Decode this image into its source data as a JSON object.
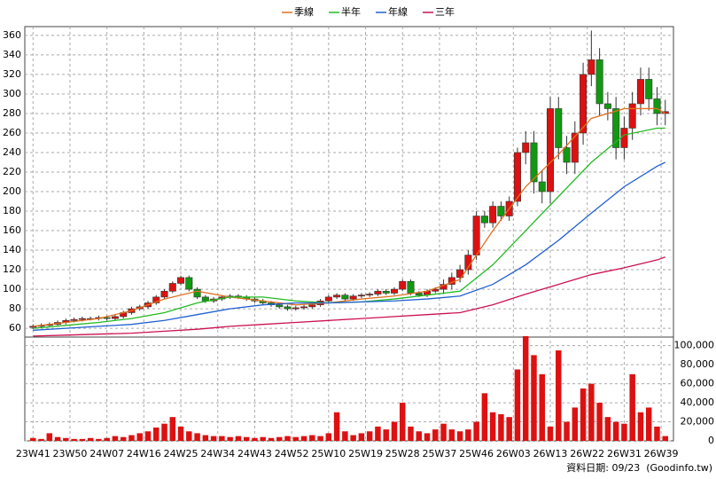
{
  "chart_data": {
    "type": "candlestick",
    "lines": [
      {
        "name": "季線",
        "color": "#e07020",
        "x": [
          0,
          8,
          16,
          24,
          32,
          40,
          48,
          56,
          64,
          72,
          80,
          88,
          96,
          104,
          112,
          120,
          128,
          136,
          144,
          152,
          154
        ],
        "values": [
          62,
          66,
          70,
          78,
          90,
          98,
          92,
          88,
          84,
          86,
          90,
          93,
          98,
          110,
          160,
          205,
          238,
          275,
          285,
          285,
          280
        ]
      },
      {
        "name": "半年",
        "color": "#22bb22",
        "x": [
          0,
          8,
          16,
          24,
          32,
          40,
          48,
          56,
          64,
          72,
          80,
          88,
          96,
          104,
          112,
          120,
          128,
          136,
          144,
          152,
          154
        ],
        "values": [
          60,
          63,
          66,
          70,
          76,
          86,
          92,
          92,
          88,
          86,
          87,
          90,
          94,
          98,
          125,
          160,
          195,
          230,
          258,
          265,
          265
        ]
      },
      {
        "name": "年線",
        "color": "#2060d0",
        "x": [
          0,
          8,
          16,
          24,
          32,
          40,
          48,
          56,
          64,
          72,
          80,
          88,
          96,
          104,
          112,
          120,
          128,
          136,
          144,
          152,
          154
        ],
        "values": [
          58,
          60,
          62,
          64,
          68,
          74,
          80,
          84,
          86,
          86,
          87,
          88,
          90,
          93,
          105,
          125,
          150,
          178,
          205,
          226,
          230
        ]
      },
      {
        "name": "三年",
        "color": "#cc1050",
        "x": [
          0,
          8,
          16,
          24,
          32,
          40,
          48,
          56,
          64,
          72,
          80,
          88,
          96,
          104,
          112,
          120,
          128,
          136,
          144,
          152,
          154
        ],
        "values": [
          52,
          53,
          54,
          55,
          57,
          59,
          62,
          64,
          66,
          68,
          70,
          72,
          74,
          76,
          84,
          95,
          105,
          115,
          122,
          130,
          133
        ]
      }
    ],
    "x": [
      0,
      2,
      4,
      6,
      8,
      10,
      12,
      14,
      16,
      18,
      20,
      22,
      24,
      26,
      28,
      30,
      32,
      34,
      36,
      38,
      40,
      42,
      44,
      46,
      48,
      50,
      52,
      54,
      56,
      58,
      60,
      62,
      64,
      66,
      68,
      70,
      72,
      74,
      76,
      78,
      80,
      82,
      84,
      86,
      88,
      90,
      92,
      94,
      96,
      98,
      100,
      102,
      104,
      106,
      108,
      110,
      112,
      114,
      116,
      118,
      120,
      122,
      124,
      126,
      128,
      130,
      132,
      134,
      136,
      138,
      140,
      142,
      144,
      146,
      148,
      150,
      152,
      154
    ],
    "open": [
      61,
      62,
      63,
      64,
      66,
      68,
      69,
      70,
      70,
      71,
      70,
      72,
      76,
      80,
      82,
      86,
      92,
      98,
      106,
      112,
      100,
      92,
      88,
      90,
      92,
      93,
      92,
      90,
      88,
      86,
      84,
      82,
      80,
      81,
      82,
      84,
      88,
      92,
      94,
      90,
      93,
      94,
      95,
      98,
      96,
      100,
      108,
      96,
      94,
      98,
      100,
      105,
      112,
      120,
      135,
      175,
      168,
      185,
      175,
      190,
      240,
      250,
      210,
      200,
      285,
      245,
      230,
      260,
      320,
      335,
      290,
      285,
      245,
      265,
      290,
      315,
      295,
      280
    ],
    "high": [
      64,
      65,
      66,
      68,
      70,
      71,
      72,
      72,
      73,
      73,
      74,
      78,
      82,
      84,
      88,
      94,
      100,
      108,
      114,
      114,
      102,
      94,
      92,
      94,
      95,
      95,
      94,
      92,
      90,
      88,
      86,
      84,
      83,
      84,
      86,
      90,
      94,
      96,
      96,
      95,
      96,
      97,
      100,
      100,
      102,
      110,
      110,
      98,
      100,
      102,
      110,
      117,
      125,
      140,
      180,
      180,
      190,
      190,
      195,
      245,
      262,
      262,
      222,
      297,
      297,
      257,
      272,
      332,
      365,
      347,
      302,
      297,
      277,
      302,
      327,
      327,
      307,
      294
    ],
    "low": [
      59,
      60,
      61,
      62,
      64,
      66,
      67,
      68,
      68,
      68,
      68,
      70,
      74,
      78,
      80,
      84,
      90,
      96,
      104,
      98,
      90,
      86,
      86,
      88,
      90,
      90,
      88,
      86,
      84,
      82,
      80,
      78,
      78,
      79,
      80,
      82,
      86,
      90,
      88,
      88,
      91,
      92,
      93,
      94,
      94,
      98,
      94,
      92,
      92,
      96,
      95,
      100,
      107,
      115,
      130,
      163,
      163,
      170,
      170,
      185,
      228,
      198,
      188,
      188,
      233,
      218,
      218,
      248,
      308,
      278,
      273,
      233,
      233,
      253,
      278,
      283,
      268,
      268
    ],
    "close": [
      62,
      63,
      64,
      66,
      68,
      69,
      70,
      70,
      71,
      70,
      72,
      76,
      80,
      82,
      86,
      92,
      98,
      106,
      112,
      100,
      92,
      88,
      90,
      92,
      93,
      92,
      90,
      88,
      86,
      84,
      82,
      80,
      81,
      82,
      84,
      88,
      92,
      94,
      90,
      93,
      94,
      95,
      98,
      96,
      100,
      108,
      96,
      94,
      98,
      100,
      105,
      112,
      120,
      135,
      175,
      168,
      185,
      175,
      190,
      240,
      250,
      210,
      200,
      285,
      245,
      230,
      260,
      320,
      335,
      290,
      285,
      245,
      265,
      290,
      315,
      295,
      280,
      282
    ],
    "volume": [
      3000,
      2000,
      8000,
      4000,
      3000,
      2000,
      2000,
      3000,
      2000,
      3000,
      5000,
      4000,
      6000,
      8000,
      10000,
      14000,
      18000,
      25000,
      15000,
      10000,
      8000,
      6000,
      5000,
      5000,
      4000,
      5000,
      4000,
      3000,
      4000,
      3000,
      4000,
      5000,
      4000,
      5000,
      6000,
      5000,
      8000,
      30000,
      10000,
      6000,
      8000,
      10000,
      15000,
      12000,
      20000,
      40000,
      15000,
      10000,
      8000,
      12000,
      18000,
      12000,
      10000,
      12000,
      20000,
      50000,
      30000,
      28000,
      25000,
      75000,
      110000,
      90000,
      70000,
      15000,
      95000,
      20000,
      35000,
      55000,
      60000,
      40000,
      25000,
      20000,
      18000,
      70000,
      30000,
      35000,
      15000,
      5000
    ],
    "up_color": "#dd1111",
    "down_color": "#119911",
    "volume_color": "#dd1111",
    "xlim": [
      -2,
      156
    ],
    "xticks": [
      {
        "value": 0,
        "label": "23W41"
      },
      {
        "value": 9,
        "label": "23W50"
      },
      {
        "value": 18,
        "label": "24W07"
      },
      {
        "value": 27,
        "label": "24W16"
      },
      {
        "value": 36,
        "label": "24W25"
      },
      {
        "value": 45,
        "label": "24W34"
      },
      {
        "value": 54,
        "label": "24W43"
      },
      {
        "value": 63,
        "label": "24W52"
      },
      {
        "value": 72,
        "label": "25W10"
      },
      {
        "value": 81,
        "label": "25W19"
      },
      {
        "value": 90,
        "label": "25W28"
      },
      {
        "value": 99,
        "label": "25W37"
      },
      {
        "value": 108,
        "label": "25W46"
      },
      {
        "value": 117,
        "label": "26W03"
      },
      {
        "value": 126,
        "label": "26W13"
      },
      {
        "value": 135,
        "label": "26W22"
      },
      {
        "value": 144,
        "label": "26W31"
      },
      {
        "value": 153,
        "label": "26W39"
      }
    ],
    "ylim": [
      51,
      369
    ],
    "yticks": [
      60,
      80,
      100,
      120,
      140,
      160,
      180,
      200,
      220,
      240,
      260,
      280,
      300,
      320,
      340,
      360
    ],
    "y2lim": [
      0,
      109000
    ],
    "y2ticks": [
      0,
      {
        "value": 20000,
        "label": "20,000"
      },
      {
        "value": 40000,
        "label": "40,000"
      },
      {
        "value": 60000,
        "label": "60,000"
      },
      {
        "value": 80000,
        "label": "80,000"
      },
      {
        "value": 100000,
        "label": "100,000"
      }
    ],
    "grid": true,
    "footer": "資料日期: 09/23  (Goodinfo.tw)"
  }
}
